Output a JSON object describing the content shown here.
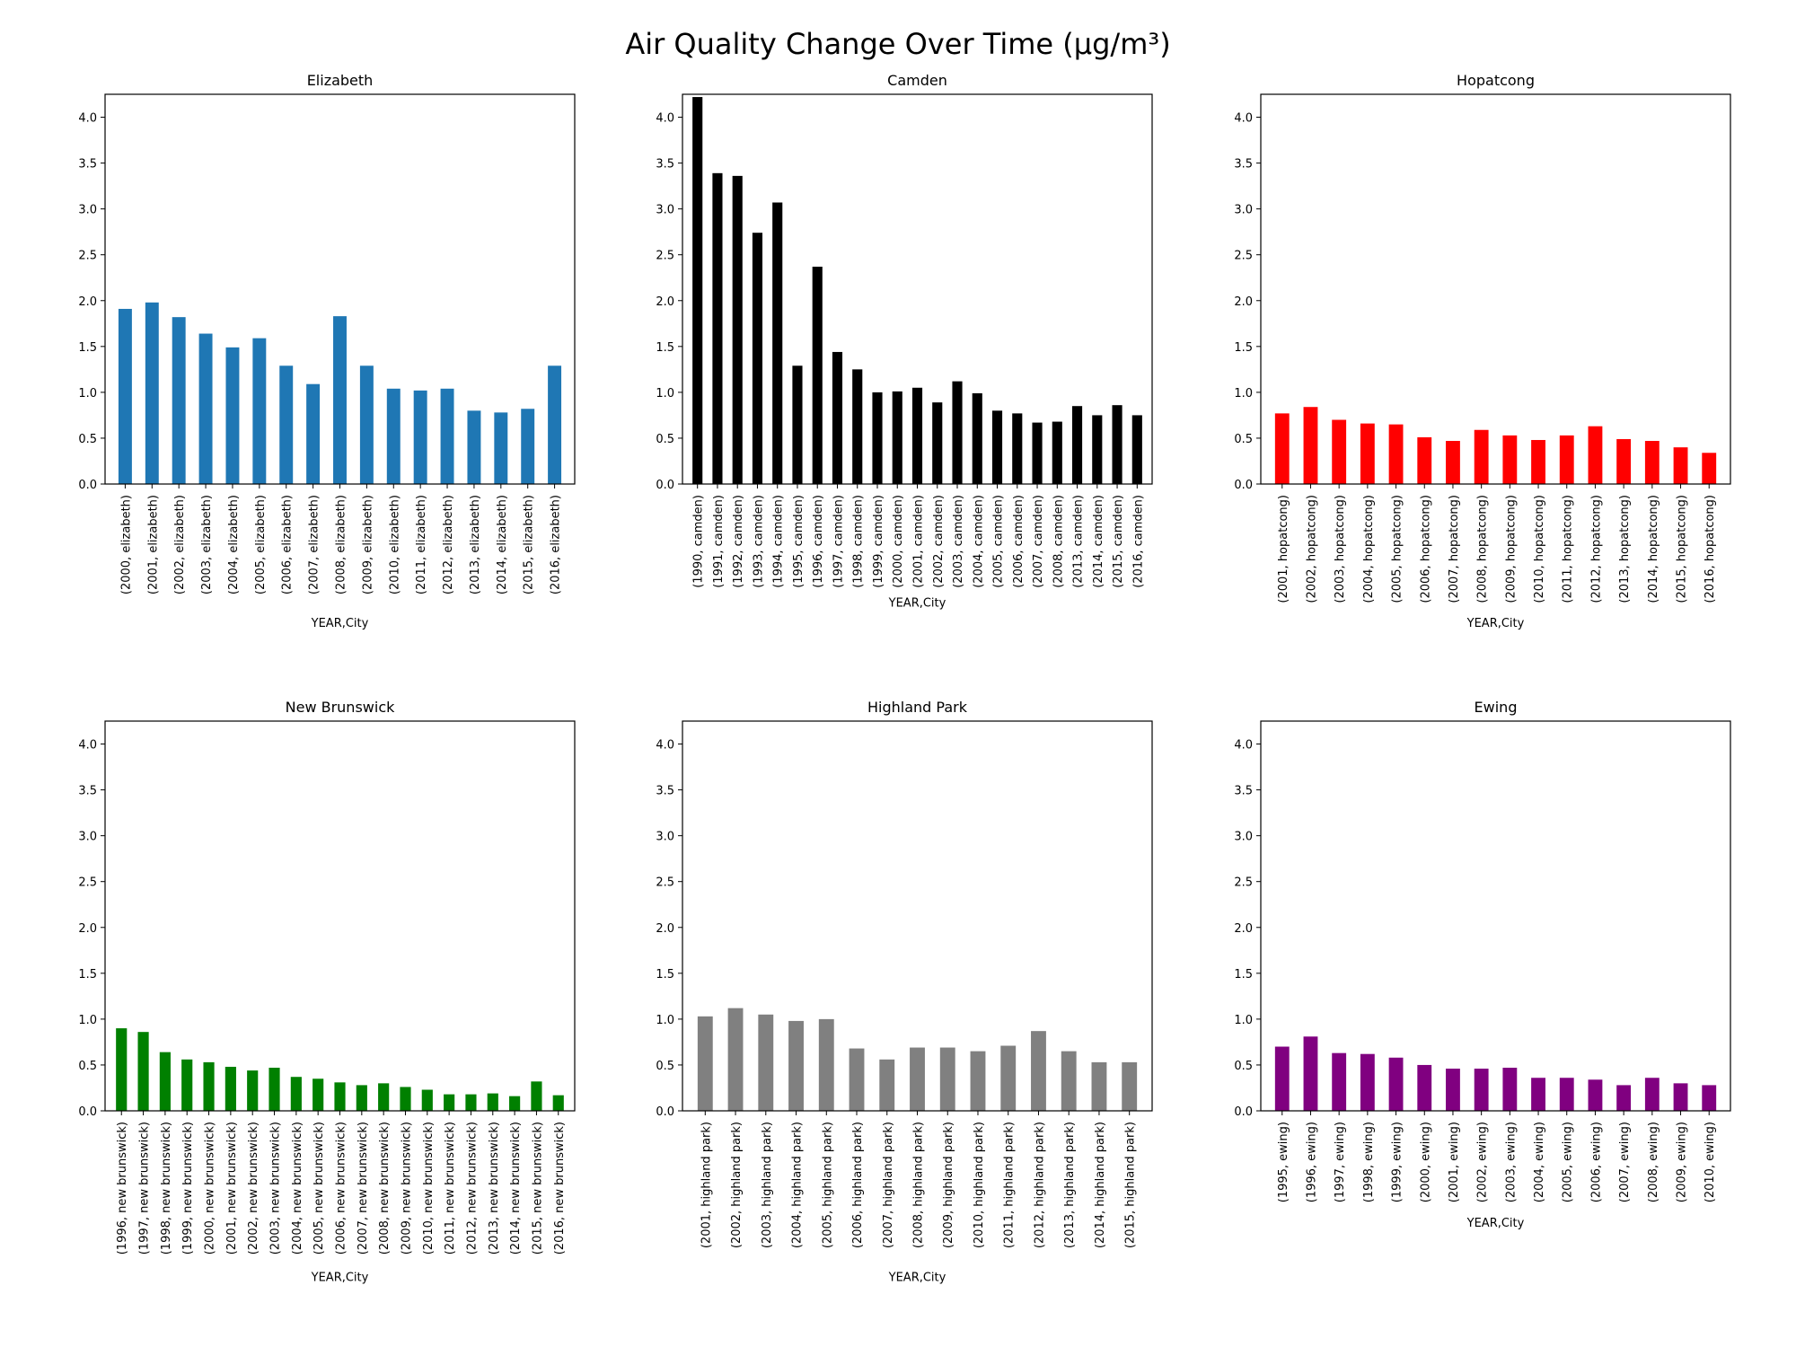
{
  "figure": {
    "title": "Air Quality Change Over Time (μg/m³)"
  },
  "chart_data": [
    {
      "type": "bar",
      "title": "Elizabeth",
      "xlabel": "YEAR,City",
      "ylabel": "",
      "ylim": [
        0,
        4.25
      ],
      "yticks": [
        "0.0",
        "0.5",
        "1.0",
        "1.5",
        "2.0",
        "2.5",
        "3.0",
        "3.5",
        "4.0"
      ],
      "color": "#1f77b4",
      "grid": false,
      "categories": [
        "(2000, elizabeth)",
        "(2001, elizabeth)",
        "(2002, elizabeth)",
        "(2003, elizabeth)",
        "(2004, elizabeth)",
        "(2005, elizabeth)",
        "(2006, elizabeth)",
        "(2007, elizabeth)",
        "(2008, elizabeth)",
        "(2009, elizabeth)",
        "(2010, elizabeth)",
        "(2011, elizabeth)",
        "(2012, elizabeth)",
        "(2013, elizabeth)",
        "(2014, elizabeth)",
        "(2015, elizabeth)",
        "(2016, elizabeth)"
      ],
      "values": [
        1.91,
        1.98,
        1.82,
        1.64,
        1.49,
        1.59,
        1.29,
        1.09,
        1.83,
        1.29,
        1.04,
        1.02,
        1.04,
        0.8,
        0.78,
        0.82,
        1.29
      ]
    },
    {
      "type": "bar",
      "title": "Camden",
      "xlabel": "YEAR,City",
      "ylabel": "",
      "ylim": [
        0,
        4.25
      ],
      "yticks": [
        "0.0",
        "0.5",
        "1.0",
        "1.5",
        "2.0",
        "2.5",
        "3.0",
        "3.5",
        "4.0"
      ],
      "color": "#000000",
      "grid": false,
      "categories": [
        "(1990, camden)",
        "(1991, camden)",
        "(1992, camden)",
        "(1993, camden)",
        "(1994, camden)",
        "(1995, camden)",
        "(1996, camden)",
        "(1997, camden)",
        "(1998, camden)",
        "(1999, camden)",
        "(2000, camden)",
        "(2001, camden)",
        "(2002, camden)",
        "(2003, camden)",
        "(2004, camden)",
        "(2005, camden)",
        "(2006, camden)",
        "(2007, camden)",
        "(2008, camden)",
        "(2013, camden)",
        "(2014, camden)",
        "(2015, camden)",
        "(2016, camden)"
      ],
      "values": [
        4.22,
        3.39,
        3.36,
        2.74,
        3.07,
        1.29,
        2.37,
        1.44,
        1.25,
        1.0,
        1.01,
        1.05,
        0.89,
        1.12,
        0.99,
        0.8,
        0.77,
        0.67,
        0.68,
        0.85,
        0.75,
        0.86,
        0.75
      ]
    },
    {
      "type": "bar",
      "title": "Hopatcong",
      "xlabel": "YEAR,City",
      "ylabel": "",
      "ylim": [
        0,
        4.25
      ],
      "yticks": [
        "0.0",
        "0.5",
        "1.0",
        "1.5",
        "2.0",
        "2.5",
        "3.0",
        "3.5",
        "4.0"
      ],
      "color": "#ff0000",
      "grid": false,
      "categories": [
        "(2001, hopatcong)",
        "(2002, hopatcong)",
        "(2003, hopatcong)",
        "(2004, hopatcong)",
        "(2005, hopatcong)",
        "(2006, hopatcong)",
        "(2007, hopatcong)",
        "(2008, hopatcong)",
        "(2009, hopatcong)",
        "(2010, hopatcong)",
        "(2011, hopatcong)",
        "(2012, hopatcong)",
        "(2013, hopatcong)",
        "(2014, hopatcong)",
        "(2015, hopatcong)",
        "(2016, hopatcong)"
      ],
      "values": [
        0.77,
        0.84,
        0.7,
        0.66,
        0.65,
        0.51,
        0.47,
        0.59,
        0.53,
        0.48,
        0.53,
        0.63,
        0.49,
        0.47,
        0.4,
        0.34
      ]
    },
    {
      "type": "bar",
      "title": "New Brunswick",
      "xlabel": "YEAR,City",
      "ylabel": "",
      "ylim": [
        0,
        4.25
      ],
      "yticks": [
        "0.0",
        "0.5",
        "1.0",
        "1.5",
        "2.0",
        "2.5",
        "3.0",
        "3.5",
        "4.0"
      ],
      "color": "#008000",
      "grid": false,
      "categories": [
        "(1996, new brunswick)",
        "(1997, new brunswick)",
        "(1998, new brunswick)",
        "(1999, new brunswick)",
        "(2000, new brunswick)",
        "(2001, new brunswick)",
        "(2002, new brunswick)",
        "(2003, new brunswick)",
        "(2004, new brunswick)",
        "(2005, new brunswick)",
        "(2006, new brunswick)",
        "(2007, new brunswick)",
        "(2008, new brunswick)",
        "(2009, new brunswick)",
        "(2010, new brunswick)",
        "(2011, new brunswick)",
        "(2012, new brunswick)",
        "(2013, new brunswick)",
        "(2014, new brunswick)",
        "(2015, new brunswick)",
        "(2016, new brunswick)"
      ],
      "values": [
        0.9,
        0.86,
        0.64,
        0.56,
        0.53,
        0.48,
        0.44,
        0.47,
        0.37,
        0.35,
        0.31,
        0.28,
        0.3,
        0.26,
        0.23,
        0.18,
        0.18,
        0.19,
        0.16,
        0.32,
        0.17
      ]
    },
    {
      "type": "bar",
      "title": "Highland Park",
      "xlabel": "YEAR,City",
      "ylabel": "",
      "ylim": [
        0,
        4.25
      ],
      "yticks": [
        "0.0",
        "0.5",
        "1.0",
        "1.5",
        "2.0",
        "2.5",
        "3.0",
        "3.5",
        "4.0"
      ],
      "color": "#808080",
      "grid": false,
      "categories": [
        "(2001, highland park)",
        "(2002, highland park)",
        "(2003, highland park)",
        "(2004, highland park)",
        "(2005, highland park)",
        "(2006, highland park)",
        "(2007, highland park)",
        "(2008, highland park)",
        "(2009, highland park)",
        "(2010, highland park)",
        "(2011, highland park)",
        "(2012, highland park)",
        "(2013, highland park)",
        "(2014, highland park)",
        "(2015, highland park)"
      ],
      "values": [
        1.03,
        1.12,
        1.05,
        0.98,
        1.0,
        0.68,
        0.56,
        0.69,
        0.69,
        0.65,
        0.71,
        0.87,
        0.65,
        0.53,
        0.53
      ]
    },
    {
      "type": "bar",
      "title": "Ewing",
      "xlabel": "YEAR,City",
      "ylabel": "",
      "ylim": [
        0,
        4.25
      ],
      "yticks": [
        "0.0",
        "0.5",
        "1.0",
        "1.5",
        "2.0",
        "2.5",
        "3.0",
        "3.5",
        "4.0"
      ],
      "color": "#800080",
      "grid": false,
      "categories": [
        "(1995, ewing)",
        "(1996, ewing)",
        "(1997, ewing)",
        "(1998, ewing)",
        "(1999, ewing)",
        "(2000, ewing)",
        "(2001, ewing)",
        "(2002, ewing)",
        "(2003, ewing)",
        "(2004, ewing)",
        "(2005, ewing)",
        "(2006, ewing)",
        "(2007, ewing)",
        "(2008, ewing)",
        "(2009, ewing)",
        "(2010, ewing)"
      ],
      "values": [
        0.7,
        0.81,
        0.63,
        0.62,
        0.58,
        0.5,
        0.46,
        0.46,
        0.47,
        0.36,
        0.36,
        0.34,
        0.28,
        0.36,
        0.3,
        0.28
      ]
    }
  ]
}
